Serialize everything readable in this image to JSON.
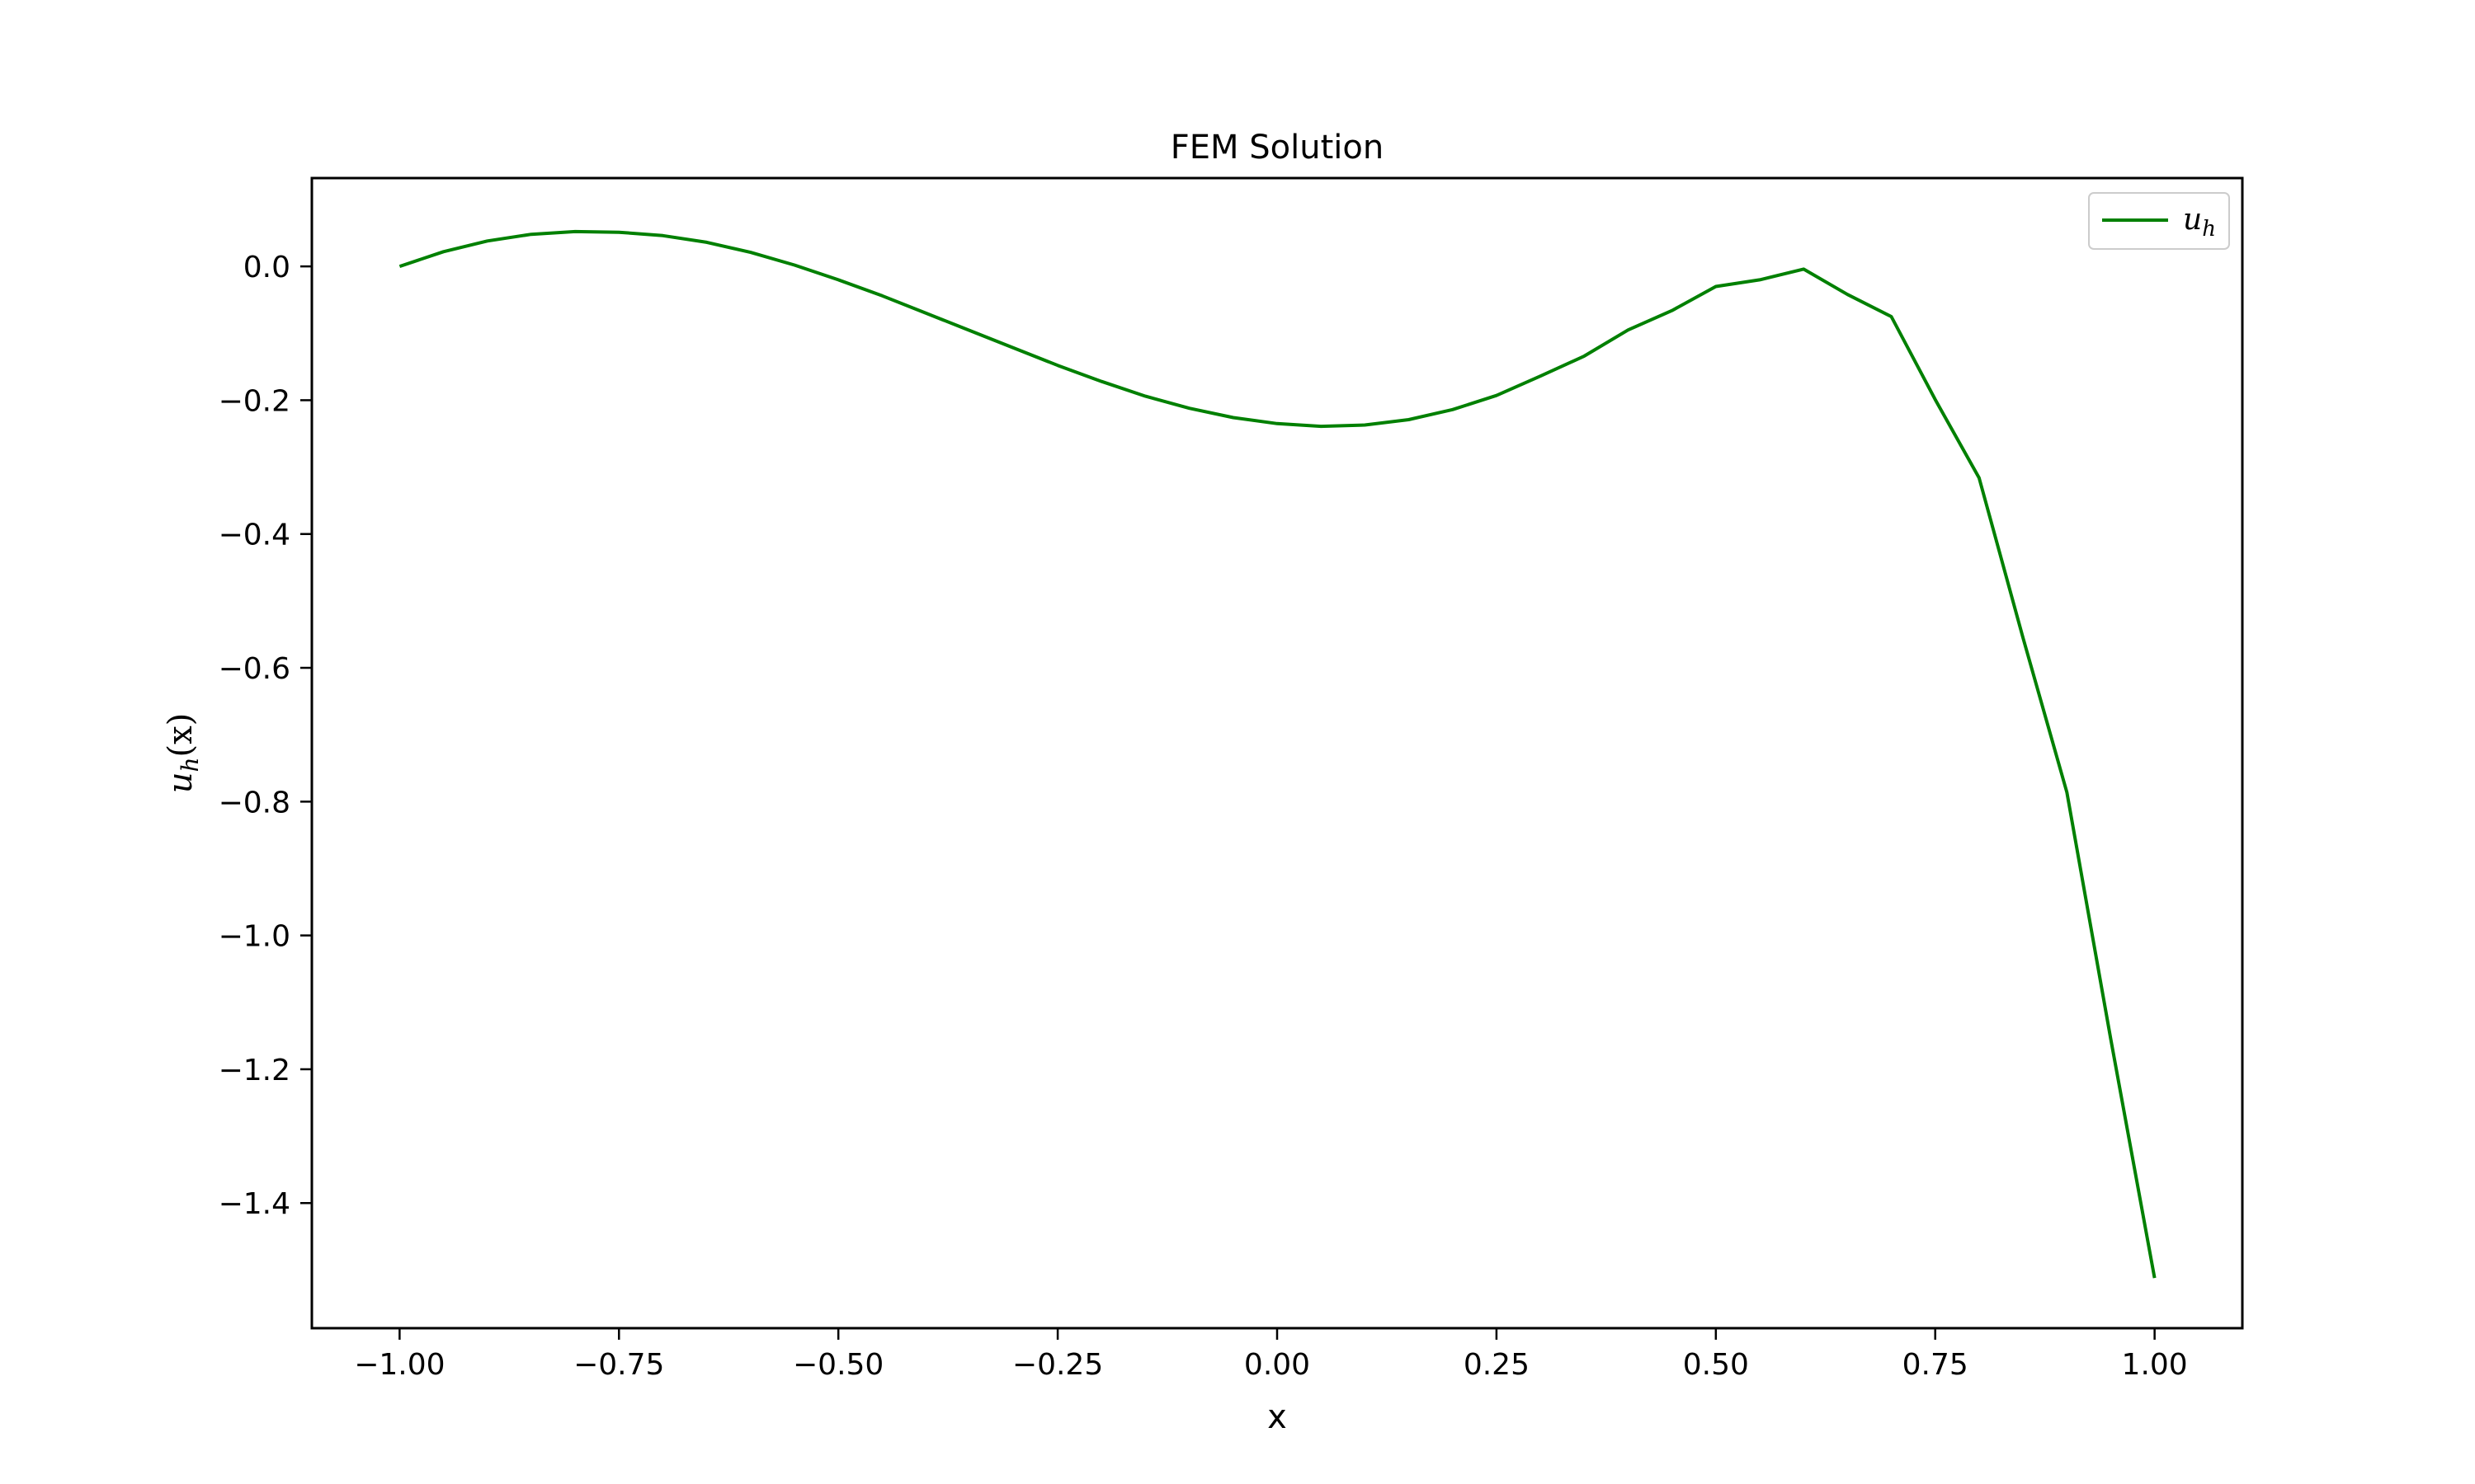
{
  "chart_data": {
    "type": "line",
    "title": "FEM Solution",
    "xlabel": "x",
    "ylabel": "u_h(x)",
    "ylabel_parts": {
      "main": "u",
      "sub": "h",
      "rest": "(x)"
    },
    "xlim": [
      -1.1,
      1.1
    ],
    "ylim": [
      -1.587,
      0.132
    ],
    "xticks": [
      -1.0,
      -0.75,
      -0.5,
      -0.25,
      0.0,
      0.25,
      0.5,
      0.75,
      1.0
    ],
    "xtick_labels": [
      "−1.00",
      "−0.75",
      "−0.50",
      "−0.25",
      "0.00",
      "0.25",
      "0.50",
      "0.75",
      "1.00"
    ],
    "yticks": [
      0.0,
      -0.2,
      -0.4,
      -0.6,
      -0.8,
      -1.0,
      -1.2,
      -1.4
    ],
    "ytick_labels": [
      "0.0",
      "−0.2",
      "−0.4",
      "−0.6",
      "−0.8",
      "−1.0",
      "−1.2",
      "−1.4"
    ],
    "grid": false,
    "legend": {
      "position": "top-right",
      "label_main": "u",
      "label_sub": "h"
    },
    "series": [
      {
        "name": "u_h",
        "color": "#008000",
        "x": [
          -1.0,
          -0.95,
          -0.9,
          -0.85,
          -0.8,
          -0.75,
          -0.7,
          -0.65,
          -0.6,
          -0.55,
          -0.5,
          -0.45,
          -0.4,
          -0.35,
          -0.3,
          -0.25,
          -0.2,
          -0.15,
          -0.1,
          -0.05,
          0.0,
          0.05,
          0.1,
          0.15,
          0.2,
          0.25,
          0.3,
          0.35,
          0.4,
          0.45,
          0.5,
          0.55,
          0.6,
          0.65,
          0.7,
          0.75,
          0.8,
          0.85,
          0.9,
          0.95,
          1.0
        ],
        "y": [
          0.0,
          0.022,
          0.038,
          0.048,
          0.052,
          0.051,
          0.046,
          0.036,
          0.021,
          0.002,
          -0.02,
          -0.044,
          -0.07,
          -0.096,
          -0.122,
          -0.148,
          -0.172,
          -0.194,
          -0.212,
          -0.226,
          -0.235,
          -0.239,
          -0.237,
          -0.229,
          -0.214,
          -0.193,
          -0.164,
          -0.134,
          -0.095,
          -0.066,
          -0.03,
          -0.02,
          -0.004,
          -0.042,
          -0.075,
          -0.199,
          -0.316,
          -0.555,
          -0.786,
          -1.155,
          -1.512
        ]
      }
    ]
  }
}
